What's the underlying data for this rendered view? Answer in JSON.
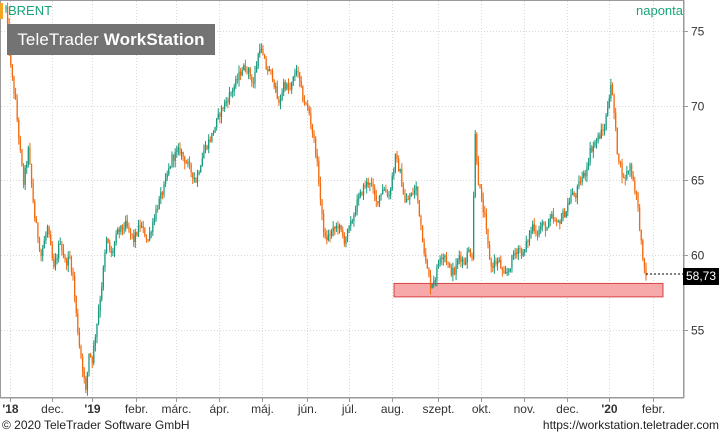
{
  "header": {
    "symbol": "BRENT",
    "period": "naponta",
    "watermark_light": "TeleTrader ",
    "watermark_bold": "WorkStation"
  },
  "last_value_label": "58,73",
  "footer": {
    "copyright": "© 2020 TeleTrader Software GmbH",
    "url": "https://workstation.teletrader.com"
  },
  "colors": {
    "up": "#1a9a7e",
    "down": "#f26a10",
    "support_fill": "#f7a8a8",
    "support_stroke": "#d64545",
    "grid": "#d8d8d8",
    "brand": "#1aa37a"
  },
  "chart_data": {
    "type": "candlestick",
    "title": "BRENT",
    "period": "naponta",
    "x_tick_labels": [
      "'18",
      "dec.",
      "'19",
      "febr.",
      "márc.",
      "ápr.",
      "máj.",
      "jún.",
      "júl.",
      "aug.",
      "szept.",
      "okt.",
      "nov.",
      "dec.",
      "'20",
      "febr."
    ],
    "y_ticks": [
      55,
      60,
      65,
      70,
      75
    ],
    "ylim": [
      50.5,
      77
    ],
    "last_value": 58.73,
    "support_zone": {
      "from_label": "aug.",
      "y_low": 57.2,
      "y_high": 58.1
    },
    "series": [
      {
        "name": "close",
        "points": [
          [
            0,
            76.5
          ],
          [
            3,
            72.5
          ],
          [
            6,
            70.2
          ],
          [
            9,
            66.8
          ],
          [
            11,
            64.8
          ],
          [
            14,
            67.0
          ],
          [
            18,
            62.5
          ],
          [
            22,
            60.0
          ],
          [
            26,
            61.8
          ],
          [
            30,
            59.0
          ],
          [
            34,
            61.0
          ],
          [
            37,
            59.5
          ],
          [
            40,
            59.8
          ],
          [
            42,
            58.5
          ],
          [
            44,
            56.0
          ],
          [
            46,
            54.0
          ],
          [
            48,
            52.5
          ],
          [
            50,
            50.8
          ],
          [
            52,
            53.5
          ],
          [
            54,
            53.0
          ],
          [
            57,
            55.5
          ],
          [
            60,
            58.0
          ],
          [
            63,
            61.0
          ],
          [
            66,
            60.0
          ],
          [
            70,
            61.5
          ],
          [
            75,
            62.0
          ],
          [
            80,
            61.0
          ],
          [
            84,
            62.0
          ],
          [
            89,
            61.0
          ],
          [
            94,
            63.0
          ],
          [
            99,
            64.5
          ],
          [
            104,
            66.5
          ],
          [
            109,
            67.0
          ],
          [
            114,
            66.0
          ],
          [
            119,
            65.0
          ],
          [
            124,
            67.0
          ],
          [
            129,
            68.0
          ],
          [
            134,
            69.5
          ],
          [
            139,
            70.5
          ],
          [
            144,
            71.5
          ],
          [
            148,
            72.5
          ],
          [
            151,
            72.5
          ],
          [
            155,
            71.5
          ],
          [
            159,
            74.0
          ],
          [
            163,
            72.5
          ],
          [
            167,
            72.0
          ],
          [
            171,
            70.0
          ],
          [
            174,
            71.5
          ],
          [
            178,
            71.0
          ],
          [
            182,
            72.5
          ],
          [
            186,
            70.5
          ],
          [
            190,
            69.5
          ],
          [
            194,
            67.0
          ],
          [
            196,
            65.0
          ],
          [
            198,
            62.5
          ],
          [
            200,
            61.0
          ],
          [
            204,
            61.5
          ],
          [
            208,
            62.0
          ],
          [
            212,
            61.0
          ],
          [
            216,
            62.0
          ],
          [
            220,
            63.5
          ],
          [
            224,
            64.5
          ],
          [
            228,
            65.0
          ],
          [
            232,
            63.5
          ],
          [
            236,
            64.5
          ],
          [
            240,
            64.0
          ],
          [
            244,
            66.5
          ],
          [
            247,
            65.5
          ],
          [
            250,
            63.5
          ],
          [
            254,
            64.0
          ],
          [
            257,
            64.5
          ],
          [
            260,
            62.0
          ],
          [
            263,
            59.5
          ],
          [
            266,
            58.0
          ],
          [
            269,
            58.5
          ],
          [
            272,
            60.0
          ],
          [
            275,
            60.0
          ],
          [
            278,
            59.0
          ],
          [
            281,
            58.8
          ],
          [
            284,
            60.0
          ],
          [
            287,
            59.5
          ],
          [
            290,
            60.3
          ],
          [
            292,
            60.0
          ],
          [
            294,
            68.0
          ],
          [
            296,
            65.0
          ],
          [
            298,
            63.5
          ],
          [
            300,
            62.5
          ],
          [
            302,
            60.5
          ],
          [
            304,
            59.2
          ],
          [
            306,
            59.5
          ],
          [
            309,
            59.5
          ],
          [
            312,
            58.5
          ],
          [
            315,
            59.0
          ],
          [
            318,
            60.0
          ],
          [
            321,
            60.5
          ],
          [
            324,
            60.0
          ],
          [
            327,
            61.0
          ],
          [
            330,
            62.0
          ],
          [
            333,
            61.5
          ],
          [
            336,
            62.0
          ],
          [
            339,
            61.8
          ],
          [
            342,
            62.5
          ],
          [
            345,
            62.0
          ],
          [
            348,
            62.5
          ],
          [
            351,
            63.0
          ],
          [
            354,
            64.0
          ],
          [
            357,
            64.0
          ],
          [
            360,
            65.0
          ],
          [
            363,
            65.5
          ],
          [
            366,
            67.0
          ],
          [
            369,
            67.5
          ],
          [
            372,
            68.0
          ],
          [
            375,
            68.5
          ],
          [
            377,
            70.0
          ],
          [
            379,
            71.5
          ],
          [
            381,
            69.5
          ],
          [
            383,
            67.0
          ],
          [
            385,
            66.0
          ],
          [
            387,
            65.0
          ],
          [
            389,
            65.5
          ],
          [
            391,
            66.0
          ],
          [
            393,
            65.0
          ],
          [
            395,
            64.0
          ],
          [
            397,
            62.0
          ],
          [
            399,
            59.5
          ],
          [
            401,
            58.73
          ]
        ]
      }
    ]
  }
}
